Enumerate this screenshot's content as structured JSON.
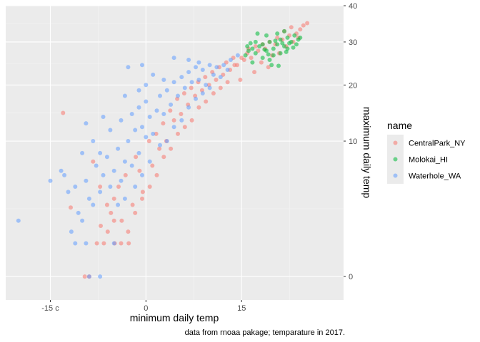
{
  "chart_data": {
    "type": "scatter",
    "xlabel": "minimum daily temp",
    "ylabel": "maximum daily temp",
    "caption": "data from rnoaa pakage; temparature in 2017.",
    "legend_title": "name",
    "legend_position": "right",
    "grid": true,
    "y_scale": "sqrt",
    "xlim": [
      -22,
      31
    ],
    "ylim": [
      -0.3,
      40
    ],
    "x_ticks": [
      {
        "value": -15,
        "label": "-15 c"
      },
      {
        "value": 0,
        "label": "0"
      },
      {
        "value": 15,
        "label": "15"
      }
    ],
    "y_ticks": [
      {
        "value": 0,
        "label": "0"
      },
      {
        "value": 10,
        "label": "10"
      },
      {
        "value": 20,
        "label": "20"
      },
      {
        "value": 30,
        "label": "30"
      },
      {
        "value": 40,
        "label": "40"
      }
    ],
    "series": [
      {
        "name": "CentralPark_NY",
        "color": "#F8766D",
        "points": [
          [
            -13.0,
            14.6
          ],
          [
            -11.8,
            2.6
          ],
          [
            -9.6,
            0
          ],
          [
            -8.9,
            0
          ],
          [
            -7.7,
            0.6
          ],
          [
            -7.1,
            1.4
          ],
          [
            -6.6,
            0.6
          ],
          [
            -6.0,
            1.1
          ],
          [
            -5.5,
            2.2
          ],
          [
            -5.0,
            3.3
          ],
          [
            -4.9,
            0.6
          ],
          [
            -4.3,
            4.4
          ],
          [
            -3.8,
            1.7
          ],
          [
            -3.2,
            5.6
          ],
          [
            -2.7,
            0.6
          ],
          [
            -2.1,
            2.8
          ],
          [
            -1.6,
            7.8
          ],
          [
            -1.0,
            6.1
          ],
          [
            -0.5,
            3.9
          ],
          [
            0.5,
            10.0
          ],
          [
            1.0,
            6.7
          ],
          [
            1.6,
            11.1
          ],
          [
            2.1,
            8.9
          ],
          [
            2.7,
            12.8
          ],
          [
            3.2,
            10.0
          ],
          [
            3.8,
            15.0
          ],
          [
            4.4,
            13.3
          ],
          [
            4.9,
            17.2
          ],
          [
            5.5,
            14.4
          ],
          [
            6.0,
            18.3
          ],
          [
            6.6,
            16.1
          ],
          [
            7.1,
            19.4
          ],
          [
            7.7,
            17.8
          ],
          [
            8.2,
            20.6
          ],
          [
            8.8,
            18.9
          ],
          [
            9.3,
            21.7
          ],
          [
            9.9,
            20.0
          ],
          [
            10.4,
            22.8
          ],
          [
            11.0,
            21.1
          ],
          [
            11.5,
            23.9
          ],
          [
            12.1,
            22.2
          ],
          [
            12.6,
            25.0
          ],
          [
            13.2,
            23.3
          ],
          [
            13.7,
            26.1
          ],
          [
            14.3,
            24.4
          ],
          [
            14.8,
            21.1
          ],
          [
            15.4,
            25.6
          ],
          [
            15.9,
            27.2
          ],
          [
            16.5,
            26.1
          ],
          [
            17.0,
            22.8
          ],
          [
            17.6,
            27.8
          ],
          [
            18.1,
            25.0
          ],
          [
            18.7,
            28.3
          ],
          [
            19.2,
            23.9
          ],
          [
            19.8,
            26.7
          ],
          [
            20.3,
            29.4
          ],
          [
            20.9,
            27.2
          ],
          [
            21.4,
            30.6
          ],
          [
            22.0,
            28.9
          ],
          [
            22.5,
            31.7
          ],
          [
            23.1,
            30.0
          ],
          [
            23.6,
            32.2
          ],
          [
            24.2,
            33.3
          ],
          [
            24.7,
            34.4
          ],
          [
            25.3,
            35.0
          ],
          [
            23.9,
            31.1
          ],
          [
            22.8,
            33.9
          ],
          [
            21.7,
            32.8
          ],
          [
            20.6,
            31.1
          ],
          [
            19.4,
            30.0
          ],
          [
            18.3,
            29.4
          ],
          [
            17.2,
            28.9
          ],
          [
            16.1,
            28.3
          ],
          [
            15.0,
            26.1
          ],
          [
            13.9,
            24.4
          ],
          [
            12.8,
            20.6
          ],
          [
            11.7,
            19.4
          ],
          [
            10.6,
            18.3
          ],
          [
            9.4,
            16.7
          ],
          [
            8.3,
            15.6
          ],
          [
            7.2,
            13.3
          ],
          [
            6.1,
            12.2
          ],
          [
            5.0,
            11.1
          ],
          [
            3.9,
            8.9
          ],
          [
            2.8,
            7.8
          ],
          [
            1.7,
            5.6
          ],
          [
            0.6,
            4.4
          ],
          [
            -0.6,
            3.3
          ],
          [
            -1.7,
            2.2
          ],
          [
            -2.8,
            1.1
          ],
          [
            -3.9,
            0.6
          ],
          [
            -5.0,
            1.7
          ],
          [
            -6.1,
            2.8
          ],
          [
            -7.2,
            4.4
          ],
          [
            -8.3,
            7.2
          ]
        ]
      },
      {
        "name": "Molokai_HI",
        "color": "#00BA38",
        "points": [
          [
            15.6,
            26.7
          ],
          [
            16.1,
            27.8
          ],
          [
            16.7,
            28.3
          ],
          [
            17.2,
            27.2
          ],
          [
            17.8,
            28.9
          ],
          [
            18.3,
            29.4
          ],
          [
            18.9,
            27.8
          ],
          [
            19.4,
            30.0
          ],
          [
            20.0,
            28.3
          ],
          [
            20.6,
            29.4
          ],
          [
            21.1,
            30.6
          ],
          [
            21.7,
            28.9
          ],
          [
            22.2,
            31.1
          ],
          [
            22.8,
            30.0
          ],
          [
            23.3,
            31.7
          ],
          [
            23.9,
            30.6
          ],
          [
            18.3,
            26.1
          ],
          [
            19.4,
            25.6
          ],
          [
            20.0,
            26.7
          ],
          [
            21.1,
            27.2
          ],
          [
            22.2,
            28.3
          ],
          [
            17.2,
            30.0
          ],
          [
            18.9,
            31.7
          ],
          [
            20.6,
            32.2
          ],
          [
            21.7,
            32.8
          ],
          [
            16.7,
            25.0
          ],
          [
            19.7,
            24.4
          ],
          [
            22.5,
            29.7
          ],
          [
            23.6,
            29.4
          ],
          [
            17.5,
            32.2
          ],
          [
            20.3,
            30.3
          ],
          [
            21.4,
            29.7
          ],
          [
            18.6,
            28.1
          ],
          [
            19.2,
            26.9
          ],
          [
            15.9,
            28.9
          ],
          [
            16.4,
            29.7
          ],
          [
            22.0,
            27.5
          ],
          [
            23.1,
            28.6
          ],
          [
            24.2,
            31.1
          ],
          [
            20.8,
            24.2
          ]
        ]
      },
      {
        "name": "Waterhole_WA",
        "color": "#619CFF",
        "points": [
          [
            -20.0,
            1.7
          ],
          [
            -15.0,
            5.0
          ],
          [
            -13.3,
            6.1
          ],
          [
            -12.2,
            3.9
          ],
          [
            -11.7,
            1.1
          ],
          [
            -11.1,
            0.6
          ],
          [
            -10.6,
            2.2
          ],
          [
            -10.0,
            1.7
          ],
          [
            -9.4,
            0.6
          ],
          [
            -9.4,
            5.0
          ],
          [
            -8.9,
            3.3
          ],
          [
            -8.3,
            2.8
          ],
          [
            -8.3,
            10.0
          ],
          [
            -7.8,
            6.7
          ],
          [
            -7.2,
            3.9
          ],
          [
            -7.2,
            8.3
          ],
          [
            -6.7,
            5.6
          ],
          [
            -6.1,
            7.8
          ],
          [
            -5.6,
            4.4
          ],
          [
            -5.6,
            11.7
          ],
          [
            -5.0,
            6.1
          ],
          [
            -4.4,
            8.9
          ],
          [
            -3.9,
            5.0
          ],
          [
            -3.9,
            13.3
          ],
          [
            -3.3,
            7.2
          ],
          [
            -2.8,
            10.0
          ],
          [
            -2.2,
            6.7
          ],
          [
            -2.2,
            14.4
          ],
          [
            -1.7,
            11.7
          ],
          [
            -1.1,
            8.3
          ],
          [
            -1.1,
            15.6
          ],
          [
            -0.6,
            12.2
          ],
          [
            0.0,
            10.6
          ],
          [
            0.0,
            16.7
          ],
          [
            0.6,
            13.9
          ],
          [
            1.1,
            11.1
          ],
          [
            1.1,
            22.2
          ],
          [
            1.7,
            15.0
          ],
          [
            2.2,
            17.8
          ],
          [
            2.8,
            14.4
          ],
          [
            3.3,
            18.9
          ],
          [
            3.9,
            16.1
          ],
          [
            4.4,
            20.6
          ],
          [
            5.0,
            17.8
          ],
          [
            5.6,
            21.7
          ],
          [
            6.1,
            19.4
          ],
          [
            6.7,
            22.8
          ],
          [
            7.2,
            20.6
          ],
          [
            7.8,
            23.9
          ],
          [
            8.3,
            21.1
          ],
          [
            8.9,
            23.3
          ],
          [
            9.4,
            20.0
          ],
          [
            10.0,
            24.4
          ],
          [
            10.6,
            22.2
          ],
          [
            11.1,
            23.9
          ],
          [
            11.7,
            21.7
          ],
          [
            12.2,
            24.4
          ],
          [
            12.8,
            23.3
          ],
          [
            13.3,
            25.6
          ],
          [
            14.4,
            26.7
          ],
          [
            -0.6,
            24.4
          ],
          [
            -2.8,
            23.9
          ],
          [
            -6.7,
            13.9
          ],
          [
            -9.4,
            12.8
          ],
          [
            -10.0,
            8.3
          ],
          [
            -11.1,
            4.4
          ],
          [
            -12.8,
            5.6
          ],
          [
            -8.9,
            0
          ],
          [
            -7.2,
            0
          ],
          [
            -5.0,
            0.6
          ],
          [
            -4.4,
            2.8
          ],
          [
            -3.3,
            3.3
          ],
          [
            -1.7,
            4.4
          ],
          [
            -0.6,
            5.6
          ],
          [
            0.6,
            7.2
          ],
          [
            2.2,
            9.4
          ],
          [
            3.3,
            10.0
          ],
          [
            4.4,
            12.2
          ],
          [
            5.6,
            13.3
          ],
          [
            6.7,
            15.6
          ],
          [
            7.8,
            17.2
          ],
          [
            8.9,
            18.3
          ],
          [
            10.0,
            19.4
          ],
          [
            2.8,
            21.1
          ],
          [
            0.0,
            20.0
          ],
          [
            -1.1,
            18.9
          ],
          [
            -3.3,
            17.8
          ],
          [
            4.4,
            26.1
          ],
          [
            6.7,
            25.6
          ],
          [
            8.3,
            25.0
          ]
        ]
      }
    ]
  }
}
